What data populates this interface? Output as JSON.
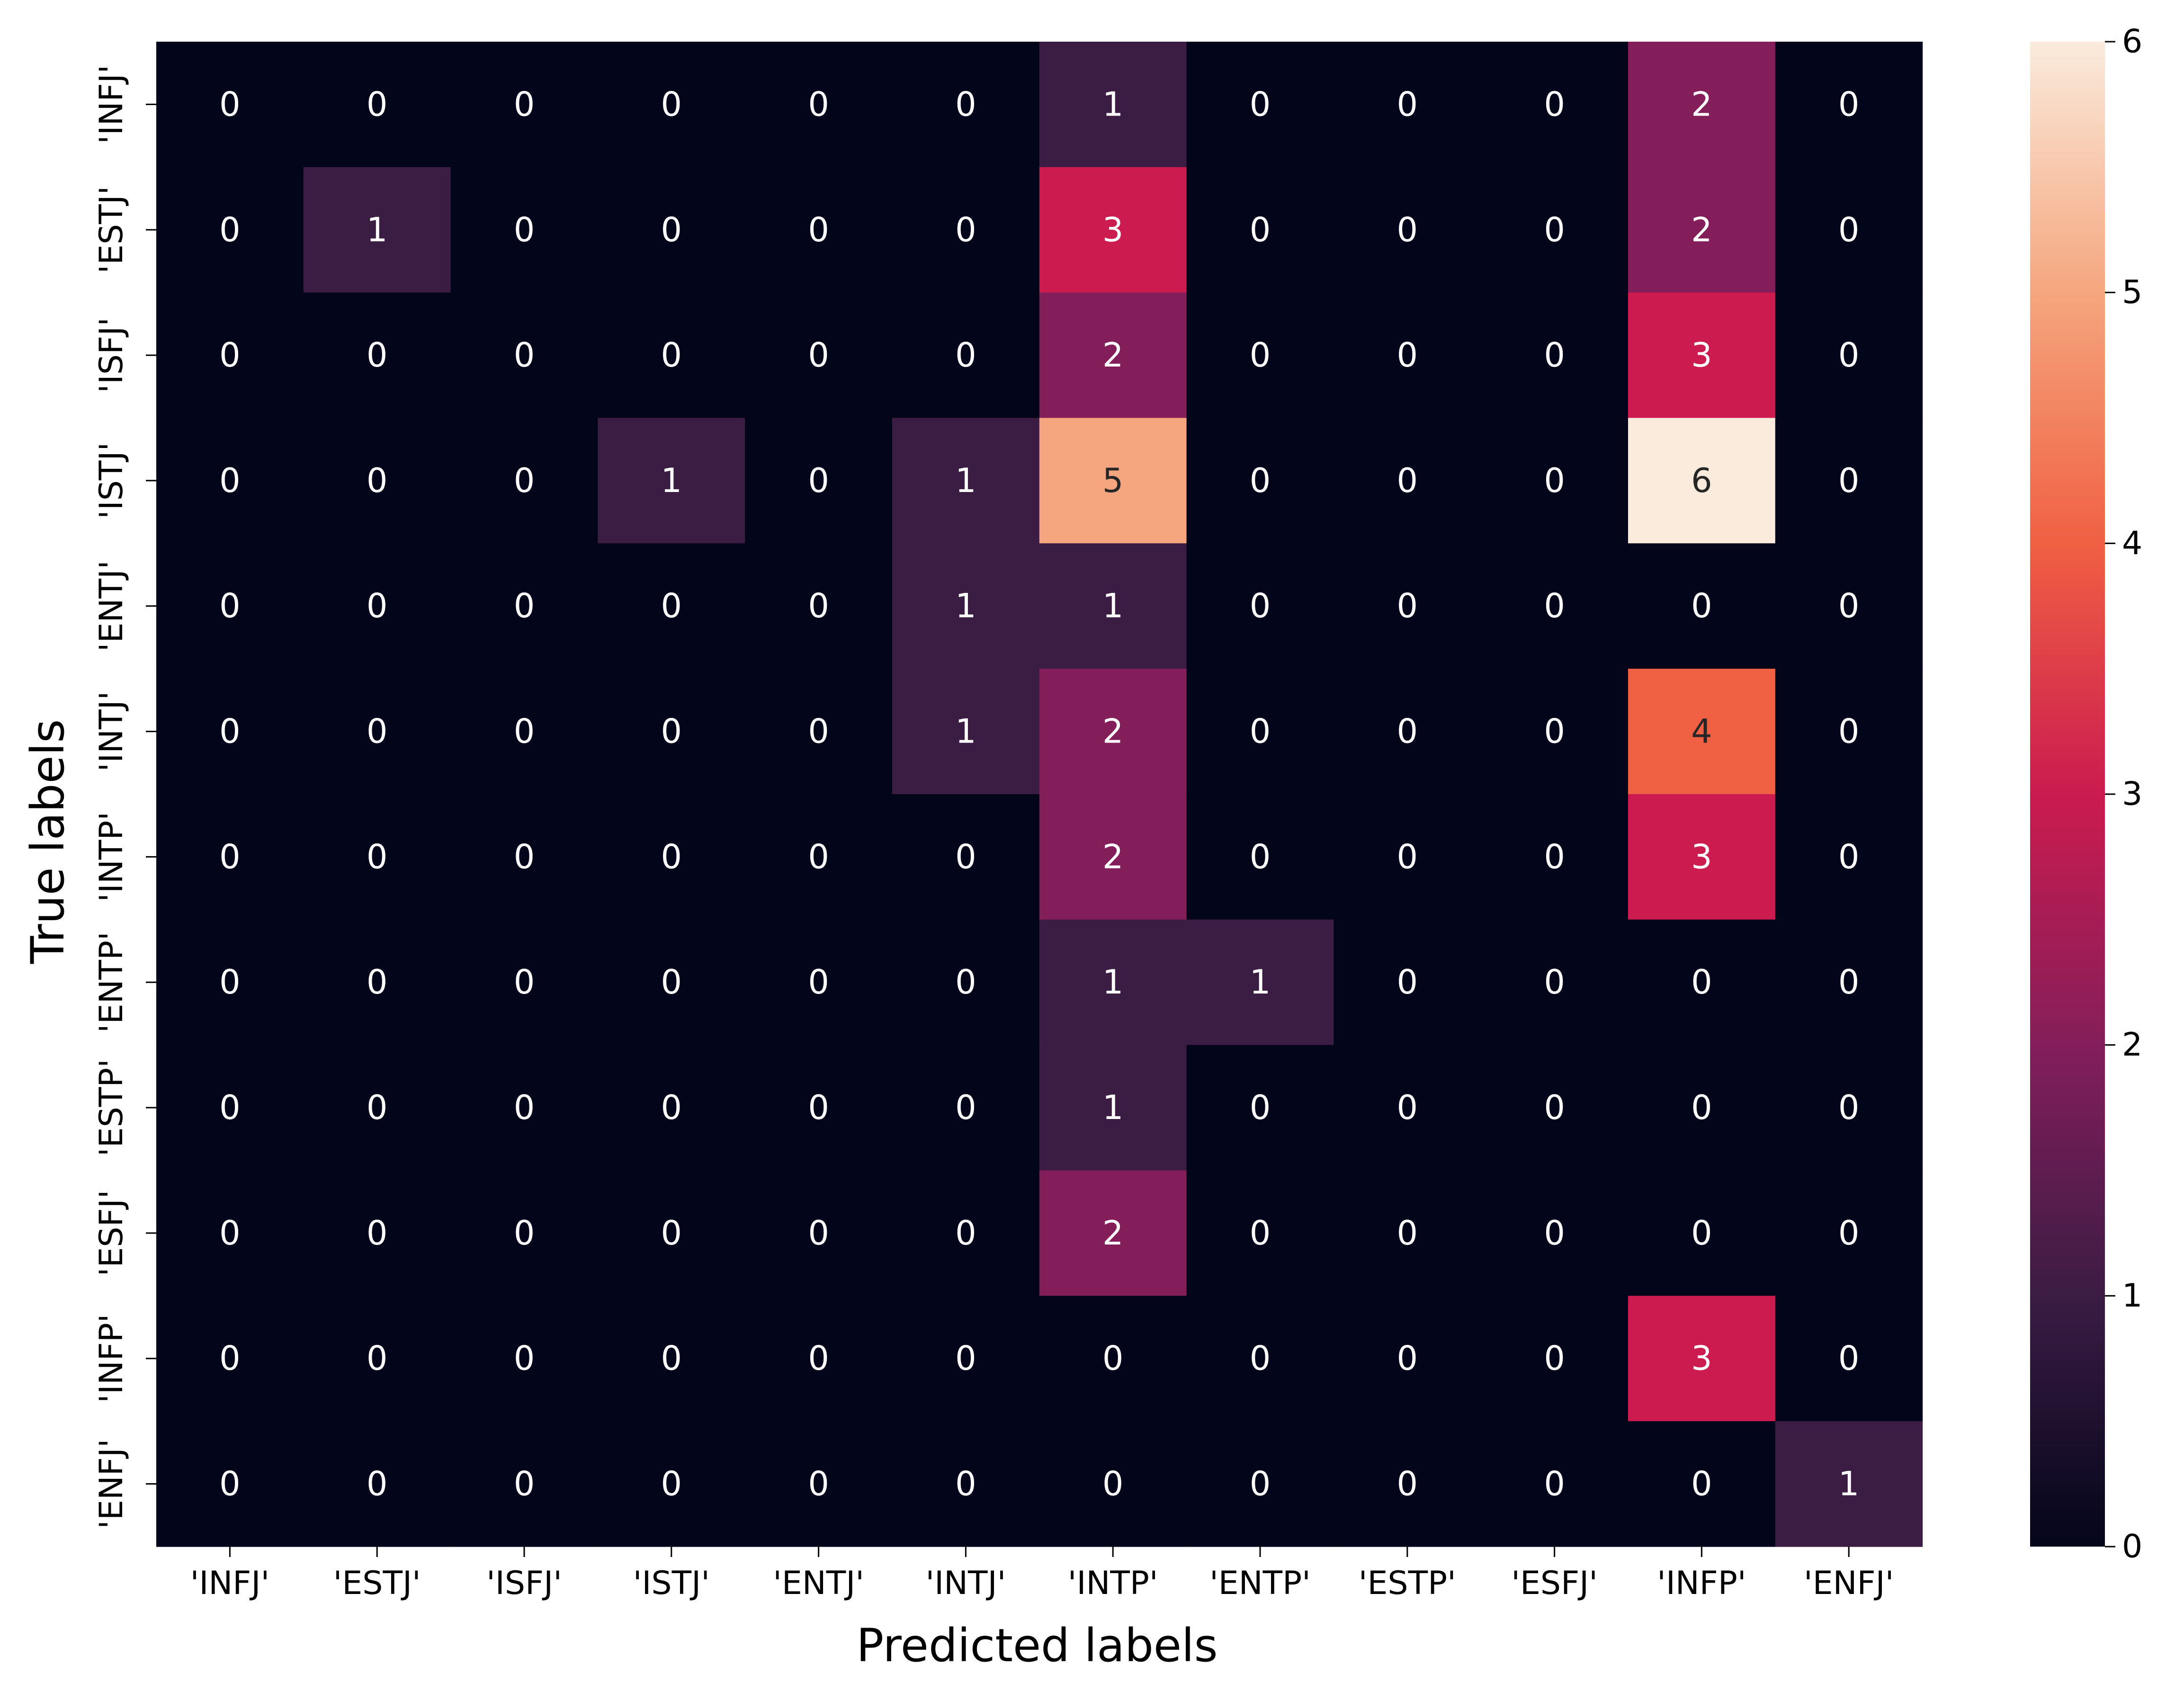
{
  "chart_data": {
    "type": "heatmap",
    "title": "",
    "xlabel": "Predicted labels",
    "ylabel": "True labels",
    "x_categories": [
      "'INFJ'",
      "'ESTJ'",
      "'ISFJ'",
      "'ISTJ'",
      "'ENTJ'",
      "'INTJ'",
      "'INTP'",
      "'ENTP'",
      "'ESTP'",
      "'ESFJ'",
      "'INFP'",
      "'ENFJ'"
    ],
    "y_categories": [
      "'INFJ'",
      "'ESTJ'",
      "'ISFJ'",
      "'ISTJ'",
      "'ENTJ'",
      "'INTJ'",
      "'INTP'",
      "'ENTP'",
      "'ESTP'",
      "'ESFJ'",
      "'INFP'",
      "'ENFJ'"
    ],
    "values": [
      [
        0,
        0,
        0,
        0,
        0,
        0,
        1,
        0,
        0,
        0,
        2,
        0
      ],
      [
        0,
        1,
        0,
        0,
        0,
        0,
        3,
        0,
        0,
        0,
        2,
        0
      ],
      [
        0,
        0,
        0,
        0,
        0,
        0,
        2,
        0,
        0,
        0,
        3,
        0
      ],
      [
        0,
        0,
        0,
        1,
        0,
        1,
        5,
        0,
        0,
        0,
        6,
        0
      ],
      [
        0,
        0,
        0,
        0,
        0,
        1,
        1,
        0,
        0,
        0,
        0,
        0
      ],
      [
        0,
        0,
        0,
        0,
        0,
        1,
        2,
        0,
        0,
        0,
        4,
        0
      ],
      [
        0,
        0,
        0,
        0,
        0,
        0,
        2,
        0,
        0,
        0,
        3,
        0
      ],
      [
        0,
        0,
        0,
        0,
        0,
        0,
        1,
        1,
        0,
        0,
        0,
        0
      ],
      [
        0,
        0,
        0,
        0,
        0,
        0,
        1,
        0,
        0,
        0,
        0,
        0
      ],
      [
        0,
        0,
        0,
        0,
        0,
        0,
        2,
        0,
        0,
        0,
        0,
        0
      ],
      [
        0,
        0,
        0,
        0,
        0,
        0,
        0,
        0,
        0,
        0,
        3,
        0
      ],
      [
        0,
        0,
        0,
        0,
        0,
        0,
        0,
        0,
        0,
        0,
        0,
        1
      ]
    ],
    "colorbar": {
      "min": 0,
      "max": 6,
      "ticks": [
        "0",
        "1",
        "2",
        "3",
        "4",
        "5",
        "6"
      ],
      "colormap": "rocket",
      "colors": [
        "#03051a",
        "#3b1c43",
        "#841e5a",
        "#cb1b4f",
        "#f06043",
        "#f5a67e",
        "#faebdd"
      ]
    },
    "grid": false,
    "legend": "colorbar-right"
  }
}
